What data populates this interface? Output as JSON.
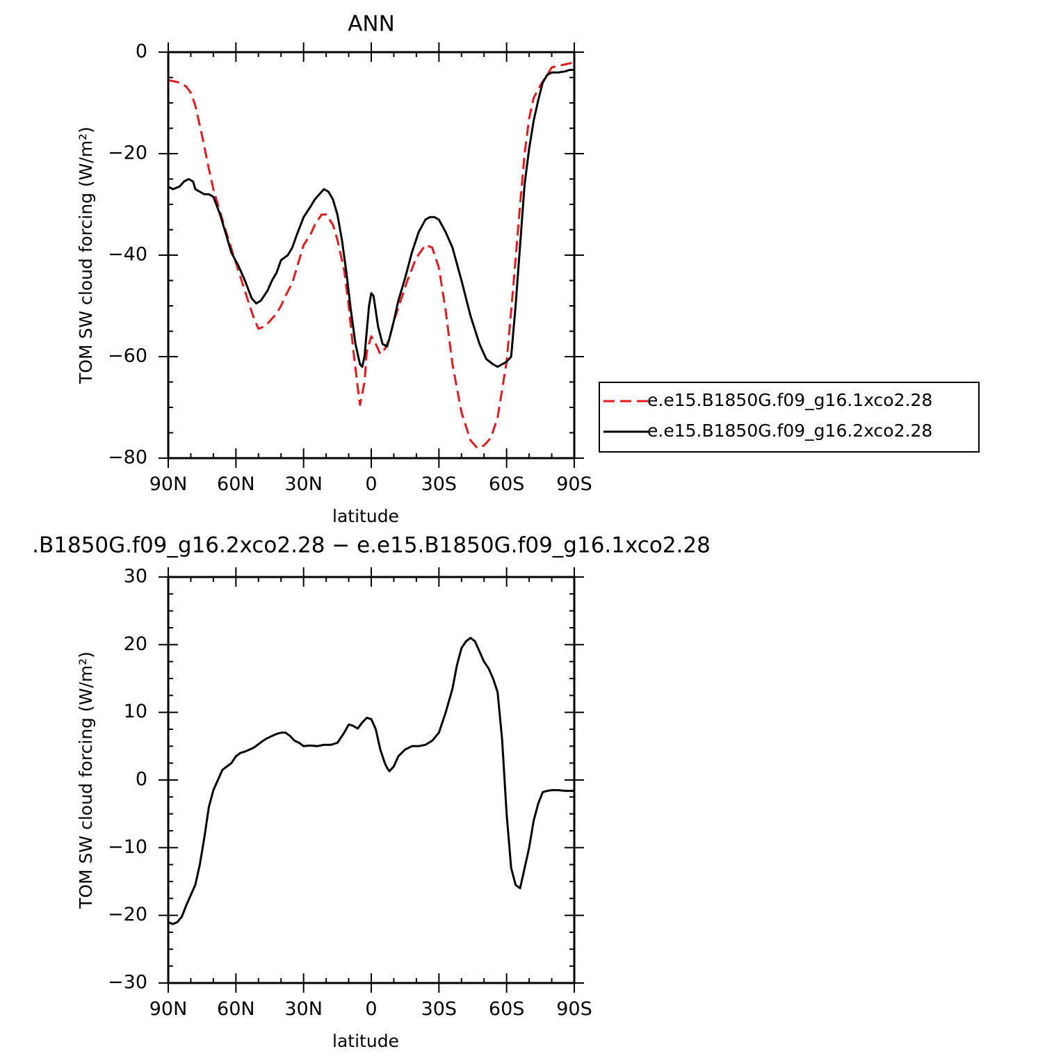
{
  "chart_data": [
    {
      "type": "line",
      "title": "ANN",
      "xlabel": "latitude",
      "ylabel": "TOM SW cloud forcing (W/m²)",
      "xlim": [
        90,
        -90
      ],
      "ylim": [
        -80,
        0
      ],
      "xticks": [
        90,
        60,
        30,
        0,
        -30,
        -60,
        -90
      ],
      "xtick_labels": [
        "90N",
        "60N",
        "30N",
        "0",
        "30S",
        "60S",
        "90S"
      ],
      "yticks": [
        0,
        -20,
        -40,
        -60,
        -80
      ],
      "ytick_labels": [
        "0",
        "−20",
        "−40",
        "−60",
        "−80"
      ],
      "grid": false,
      "legend_position": "right",
      "colors": {
        "series_1": "#e31a1c",
        "series_2": "#000000"
      },
      "series": [
        {
          "name": "e.e15.B1850G.f09_g16.1xco2.28",
          "color": "#e31a1c",
          "style": "dashed",
          "x": [
            90,
            85,
            82,
            80,
            78,
            75,
            72,
            70,
            65,
            60,
            55,
            52,
            50,
            47,
            45,
            42,
            40,
            38,
            35,
            30,
            27,
            25,
            22,
            20,
            17,
            15,
            12,
            10,
            8,
            6,
            5,
            3,
            2,
            0,
            -2,
            -4,
            -6,
            -8,
            -10,
            -13,
            -16,
            -20,
            -24,
            -27,
            -30,
            -33,
            -36,
            -40,
            -44,
            -47,
            -50,
            -53,
            -56,
            -60,
            -63,
            -66,
            -68,
            -70,
            -72,
            -75,
            -78,
            -80,
            -85,
            -90
          ],
          "y": [
            -5.5,
            -6.0,
            -6.8,
            -8.0,
            -10.5,
            -16.5,
            -23.0,
            -27.0,
            -34.5,
            -41.5,
            -48.5,
            -52.5,
            -54.5,
            -54.0,
            -53.0,
            -51.5,
            -50.0,
            -48.0,
            -45.5,
            -38.0,
            -36.0,
            -34.0,
            -32.0,
            -32.0,
            -34.0,
            -37.0,
            -43.0,
            -50.0,
            -58.5,
            -66.0,
            -69.5,
            -65.0,
            -59.0,
            -56.0,
            -57.5,
            -59.5,
            -58.5,
            -56.5,
            -53.0,
            -49.0,
            -45.0,
            -40.5,
            -38.0,
            -38.5,
            -42.5,
            -51.0,
            -61.5,
            -71.0,
            -76.5,
            -78.0,
            -77.5,
            -76.0,
            -72.0,
            -61.0,
            -46.0,
            -30.0,
            -20.0,
            -13.0,
            -9.0,
            -6.5,
            -4.5,
            -3.0,
            -2.5,
            -2.0
          ]
        },
        {
          "name": "e.e15.B1850G.f09_g16.2xco2.28",
          "color": "#000000",
          "style": "solid",
          "x": [
            90,
            88,
            85,
            83,
            81,
            79,
            78,
            76,
            74,
            72,
            70,
            67,
            64,
            62,
            59,
            56,
            53,
            51,
            49,
            46,
            44,
            42,
            40,
            37,
            35,
            33,
            30,
            27,
            25,
            23,
            21,
            19,
            17,
            15,
            13,
            11,
            9,
            7,
            5,
            4,
            3,
            2,
            1,
            0,
            -1,
            -2,
            -3,
            -5,
            -7,
            -8,
            -10,
            -12,
            -15,
            -18,
            -21,
            -24,
            -26,
            -28,
            -30,
            -33,
            -36,
            -40,
            -44,
            -48,
            -51,
            -54,
            -56,
            -58,
            -60,
            -62,
            -64,
            -66,
            -68,
            -70,
            -72,
            -74,
            -76,
            -78,
            -80,
            -83,
            -86,
            -88,
            -90
          ],
          "y": [
            -26.5,
            -27.0,
            -26.5,
            -25.5,
            -25.0,
            -25.5,
            -27.0,
            -27.5,
            -28.0,
            -28.0,
            -28.5,
            -32.0,
            -36.5,
            -39.5,
            -42.0,
            -45.0,
            -48.5,
            -49.5,
            -49.0,
            -47.0,
            -45.0,
            -43.5,
            -41.0,
            -40.0,
            -38.5,
            -36.0,
            -32.5,
            -30.5,
            -29.0,
            -28.0,
            -27.0,
            -27.5,
            -29.0,
            -32.0,
            -37.0,
            -43.5,
            -51.0,
            -57.5,
            -61.5,
            -62.0,
            -60.0,
            -55.0,
            -50.0,
            -47.5,
            -48.0,
            -51.0,
            -54.0,
            -57.5,
            -58.0,
            -56.5,
            -53.0,
            -49.0,
            -44.5,
            -39.5,
            -35.5,
            -33.0,
            -32.5,
            -32.5,
            -33.0,
            -35.5,
            -38.5,
            -45.0,
            -52.0,
            -57.5,
            -60.5,
            -61.5,
            -62.0,
            -61.5,
            -61.0,
            -60.0,
            -50.0,
            -38.0,
            -26.0,
            -19.0,
            -13.5,
            -9.5,
            -6.0,
            -4.5,
            -4.0,
            -4.0,
            -3.8,
            -3.5,
            -3.5
          ]
        }
      ]
    },
    {
      "type": "line",
      "title": ".B1850G.f09_g16.2xco2.28 − e.e15.B1850G.f09_g16.1xco2.28",
      "xlabel": "latitude",
      "ylabel": "TOM SW cloud forcing (W/m²)",
      "xlim": [
        90,
        -90
      ],
      "ylim": [
        -30,
        30
      ],
      "xticks": [
        90,
        60,
        30,
        0,
        -30,
        -60,
        -90
      ],
      "xtick_labels": [
        "90N",
        "60N",
        "30N",
        "0",
        "30S",
        "60S",
        "90S"
      ],
      "yticks": [
        30,
        20,
        10,
        0,
        -10,
        -20,
        -30
      ],
      "ytick_labels": [
        "30",
        "20",
        "10",
        "0",
        "−10",
        "−20",
        "−30"
      ],
      "grid": false,
      "colors": {
        "series_1": "#000000"
      },
      "series": [
        {
          "color": "#000000",
          "style": "solid",
          "x": [
            90,
            88,
            86,
            84,
            82,
            80,
            78,
            76,
            74,
            72,
            70,
            68,
            66,
            64,
            62,
            60,
            58,
            56,
            54,
            52,
            50,
            48,
            46,
            44,
            42,
            40,
            38,
            36,
            34,
            32,
            30,
            27,
            24,
            21,
            18,
            15,
            12,
            10,
            8,
            6,
            4,
            2,
            0,
            -2,
            -4,
            -6,
            -7,
            -8,
            -10,
            -12,
            -15,
            -18,
            -21,
            -24,
            -27,
            -30,
            -33,
            -36,
            -38,
            -40,
            -42,
            -44,
            -46,
            -48,
            -50,
            -52,
            -54,
            -56,
            -58,
            -60,
            -62,
            -64,
            -66,
            -68,
            -70,
            -72,
            -74,
            -76,
            -78,
            -80,
            -83,
            -86,
            -90
          ],
          "y": [
            -21.0,
            -21.3,
            -21.0,
            -20.2,
            -18.5,
            -17.0,
            -15.5,
            -12.5,
            -8.5,
            -4.0,
            -1.5,
            0.0,
            1.5,
            2.0,
            2.5,
            3.5,
            4.0,
            4.2,
            4.5,
            4.8,
            5.3,
            5.8,
            6.2,
            6.5,
            6.8,
            7.0,
            7.0,
            6.5,
            5.8,
            5.5,
            5.0,
            5.1,
            5.0,
            5.2,
            5.2,
            5.5,
            7.0,
            8.2,
            8.0,
            7.6,
            8.5,
            9.2,
            9.0,
            7.5,
            4.5,
            2.5,
            1.8,
            1.3,
            2.0,
            3.5,
            4.5,
            5.0,
            5.0,
            5.2,
            5.8,
            7.0,
            10.0,
            13.5,
            17.0,
            19.5,
            20.5,
            21.0,
            20.5,
            19.0,
            17.5,
            16.5,
            15.0,
            13.0,
            6.0,
            -5.0,
            -13.0,
            -15.5,
            -16.0,
            -13.0,
            -10.0,
            -6.0,
            -3.5,
            -1.8,
            -1.6,
            -1.5,
            -1.5,
            -1.6,
            -1.6
          ]
        }
      ]
    }
  ]
}
